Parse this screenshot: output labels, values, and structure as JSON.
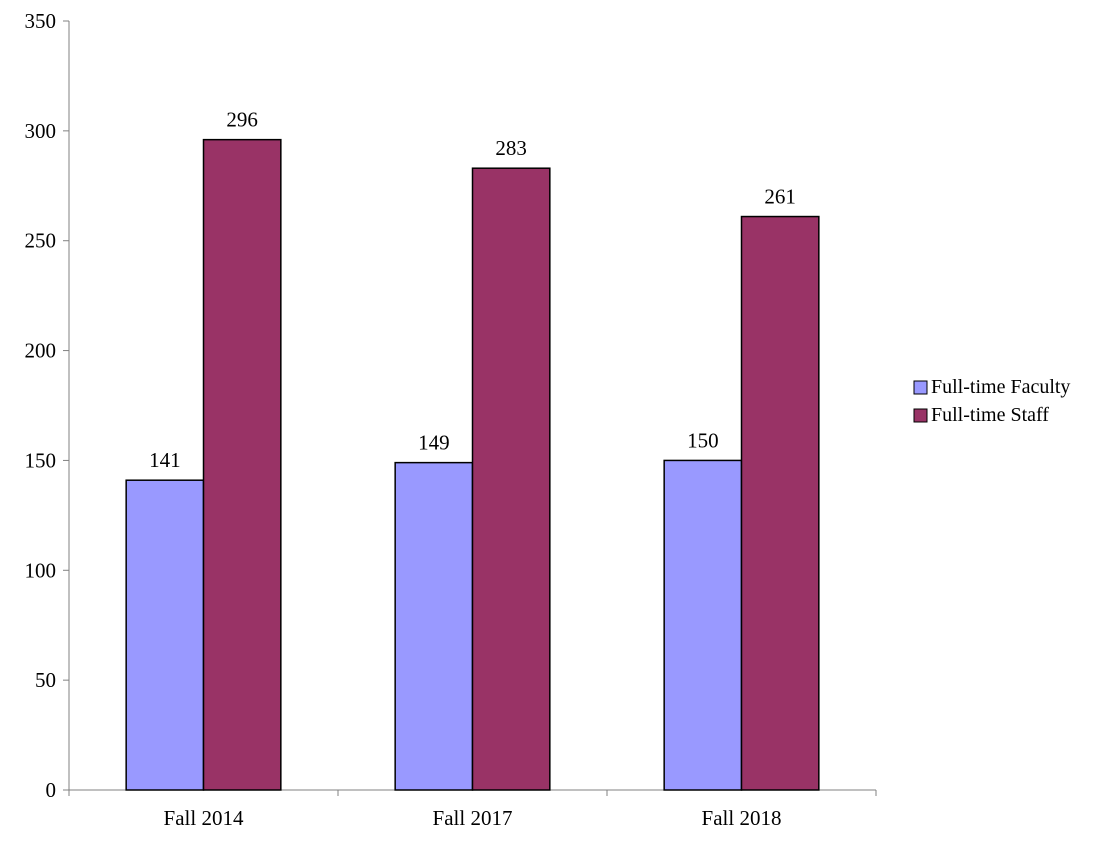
{
  "chart_data": {
    "type": "bar",
    "title": "",
    "xlabel": "",
    "ylabel": "",
    "categories": [
      "Fall 2014",
      "Fall 2017",
      "Fall 2018"
    ],
    "series": [
      {
        "name": "Full-time Faculty",
        "values": [
          141,
          149,
          150
        ],
        "color": "#9999FF"
      },
      {
        "name": "Full-time Staff",
        "values": [
          296,
          283,
          261
        ],
        "color": "#993366"
      }
    ],
    "ylim": [
      0,
      350
    ],
    "yticks": [
      0,
      50,
      100,
      150,
      200,
      250,
      300,
      350
    ],
    "grid": false,
    "legend_position": "right",
    "data_labels": true
  }
}
